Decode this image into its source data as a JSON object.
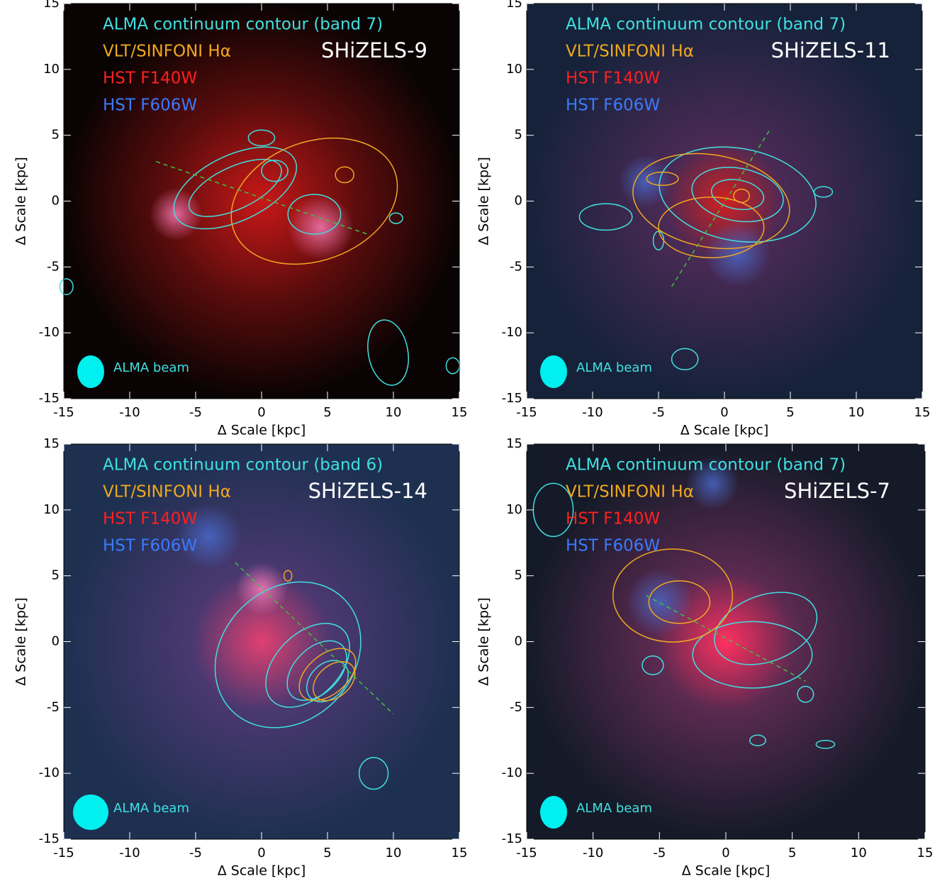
{
  "chart_data": [
    {
      "type": "image",
      "object": "SHiZELS-9",
      "xlabel": "Δ Scale [kpc]",
      "ylabel": "Δ Scale [kpc]",
      "xlim": [
        -15,
        15
      ],
      "ylim": [
        -15,
        15
      ],
      "xticks": [
        -15,
        -10,
        -5,
        0,
        5,
        10,
        15
      ],
      "yticks": [
        -15,
        -10,
        -5,
        0,
        5,
        10,
        15
      ],
      "legend": [
        {
          "text": "ALMA continuum contour (band 7)",
          "color": "#3fe0e0"
        },
        {
          "text": "VLT/SINFONI Hα",
          "color": "#f0a820"
        },
        {
          "text": "HST F140W",
          "color": "#ff2020"
        },
        {
          "text": "HST F606W",
          "color": "#3a7bff"
        }
      ],
      "beam_label": "ALMA beam"
    },
    {
      "type": "image",
      "object": "SHiZELS-11",
      "xlabel": "Δ Scale [kpc]",
      "ylabel": "Δ Scale [kpc]",
      "xlim": [
        -15,
        15
      ],
      "ylim": [
        -15,
        15
      ],
      "xticks": [
        -15,
        -10,
        -5,
        0,
        5,
        10,
        15
      ],
      "yticks": [
        -15,
        -10,
        -5,
        0,
        5,
        10,
        15
      ],
      "legend": [
        {
          "text": "ALMA continuum contour (band 7)",
          "color": "#3fe0e0"
        },
        {
          "text": "VLT/SINFONI Hα",
          "color": "#f0a820"
        },
        {
          "text": "HST F140W",
          "color": "#ff2020"
        },
        {
          "text": "HST F606W",
          "color": "#3a7bff"
        }
      ],
      "beam_label": "ALMA beam"
    },
    {
      "type": "image",
      "object": "SHiZELS-14",
      "xlabel": "Δ Scale [kpc]",
      "ylabel": "Δ Scale [kpc]",
      "xlim": [
        -15,
        15
      ],
      "ylim": [
        -15,
        15
      ],
      "xticks": [
        -15,
        -10,
        -5,
        0,
        5,
        10,
        15
      ],
      "yticks": [
        -15,
        -10,
        -5,
        0,
        5,
        10,
        15
      ],
      "legend": [
        {
          "text": "ALMA continuum contour (band 6)",
          "color": "#3fe0e0"
        },
        {
          "text": "VLT/SINFONI Hα",
          "color": "#f0a820"
        },
        {
          "text": "HST F140W",
          "color": "#ff2020"
        },
        {
          "text": "HST F606W",
          "color": "#3a7bff"
        }
      ],
      "beam_label": "ALMA beam"
    },
    {
      "type": "image",
      "object": "SHiZELS-7",
      "xlabel": "Δ Scale [kpc]",
      "ylabel": "Δ Scale [kpc]",
      "xlim": [
        -15,
        15
      ],
      "ylim": [
        -15,
        15
      ],
      "xticks": [
        -15,
        -10,
        -5,
        0,
        5,
        10,
        15
      ],
      "yticks": [
        -15,
        -10,
        -5,
        0,
        5,
        10,
        15
      ],
      "legend": [
        {
          "text": "ALMA continuum contour (band 7)",
          "color": "#3fe0e0"
        },
        {
          "text": "VLT/SINFONI Hα",
          "color": "#f0a820"
        },
        {
          "text": "HST F140W",
          "color": "#ff2020"
        },
        {
          "text": "HST F606W",
          "color": "#3a7bff"
        }
      ],
      "beam_label": "ALMA beam"
    }
  ]
}
